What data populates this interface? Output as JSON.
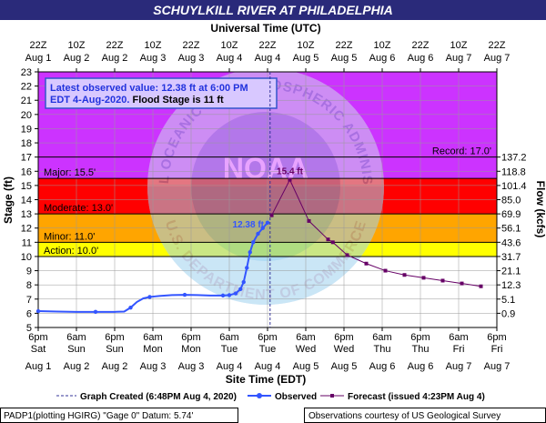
{
  "header": {
    "title": "SCHUYLKILL RIVER AT PHILADELPHIA"
  },
  "top_axis": {
    "title": "Universal Time (UTC)",
    "ticks": [
      {
        "hour": 0,
        "l1": "22Z",
        "l2": "Aug 1"
      },
      {
        "hour": 12,
        "l1": "10Z",
        "l2": "Aug 2"
      },
      {
        "hour": 24,
        "l1": "22Z",
        "l2": "Aug 2"
      },
      {
        "hour": 36,
        "l1": "10Z",
        "l2": "Aug 3"
      },
      {
        "hour": 48,
        "l1": "22Z",
        "l2": "Aug 3"
      },
      {
        "hour": 60,
        "l1": "10Z",
        "l2": "Aug 4"
      },
      {
        "hour": 72,
        "l1": "22Z",
        "l2": "Aug 4"
      },
      {
        "hour": 84,
        "l1": "10Z",
        "l2": "Aug 5"
      },
      {
        "hour": 96,
        "l1": "22Z",
        "l2": "Aug 5"
      },
      {
        "hour": 108,
        "l1": "10Z",
        "l2": "Aug 6"
      },
      {
        "hour": 120,
        "l1": "22Z",
        "l2": "Aug 6"
      },
      {
        "hour": 132,
        "l1": "10Z",
        "l2": "Aug 7"
      },
      {
        "hour": 144,
        "l1": "22Z",
        "l2": "Aug 7"
      }
    ]
  },
  "bottom_axis": {
    "title": "Site Time (EDT)",
    "ticks": [
      {
        "hour": 0,
        "l1": "6pm",
        "l2": "Sat",
        "l3": "Aug 1"
      },
      {
        "hour": 12,
        "l1": "6am",
        "l2": "Sun",
        "l3": "Aug 2"
      },
      {
        "hour": 24,
        "l1": "6pm",
        "l2": "Sun",
        "l3": "Aug 2"
      },
      {
        "hour": 36,
        "l1": "6am",
        "l2": "Mon",
        "l3": "Aug 3"
      },
      {
        "hour": 48,
        "l1": "6pm",
        "l2": "Mon",
        "l3": "Aug 3"
      },
      {
        "hour": 60,
        "l1": "6am",
        "l2": "Tue",
        "l3": "Aug 4"
      },
      {
        "hour": 72,
        "l1": "6pm",
        "l2": "Tue",
        "l3": "Aug 4"
      },
      {
        "hour": 84,
        "l1": "6am",
        "l2": "Wed",
        "l3": "Aug 5"
      },
      {
        "hour": 96,
        "l1": "6pm",
        "l2": "Wed",
        "l3": "Aug 5"
      },
      {
        "hour": 108,
        "l1": "6am",
        "l2": "Thu",
        "l3": "Aug 6"
      },
      {
        "hour": 120,
        "l1": "6pm",
        "l2": "Thu",
        "l3": "Aug 6"
      },
      {
        "hour": 132,
        "l1": "6am",
        "l2": "Fri",
        "l3": "Aug 7"
      },
      {
        "hour": 144,
        "l1": "6pm",
        "l2": "Fri",
        "l3": "Aug 7"
      }
    ]
  },
  "left_axis": {
    "title": "Stage (ft)",
    "min": 5,
    "max": 23,
    "step": 1
  },
  "right_axis": {
    "title": "Flow (kcfs)",
    "ticks": [
      {
        "stage": 6,
        "label": "0.9"
      },
      {
        "stage": 7,
        "label": "5.1"
      },
      {
        "stage": 8,
        "label": "12.3"
      },
      {
        "stage": 9,
        "label": "21.1"
      },
      {
        "stage": 10,
        "label": "31.7"
      },
      {
        "stage": 11,
        "label": "43.6"
      },
      {
        "stage": 12,
        "label": "56.1"
      },
      {
        "stage": 13,
        "label": "69.9"
      },
      {
        "stage": 14,
        "label": "85.0"
      },
      {
        "stage": 15,
        "label": "101.4"
      },
      {
        "stage": 16,
        "label": "118.8"
      },
      {
        "stage": 17,
        "label": "137.2"
      }
    ]
  },
  "bands": [
    {
      "name": "Action",
      "label": "Action: 10.0'",
      "from": 10,
      "to": 11,
      "color": "#ffff00"
    },
    {
      "name": "Minor",
      "label": "Minor: 11.0'",
      "from": 11,
      "to": 13,
      "color": "#ffa500"
    },
    {
      "name": "Moderate",
      "label": "Moderate: 13.0'",
      "from": 13,
      "to": 15.5,
      "color": "#ff0000"
    },
    {
      "name": "Major",
      "label": "Major: 15.5'",
      "from": 15.5,
      "to": 23,
      "color": "#cc33ff"
    }
  ],
  "record": {
    "label": "Record: 17.0'",
    "value": 17
  },
  "info_box": {
    "line1": "Latest observed value: 12.38 ft at 6:00 PM",
    "line2a": "EDT 4-Aug-2020. ",
    "line2b": "Flood Stage is 11 ft"
  },
  "watermark": {
    "top_text": "NATIONAL OCEANIC AND ATMOSPHERIC ADMINISTRATION",
    "bottom_text": "U.S. DEPARTMENT OF COMMERCE",
    "logo_text": "NOAA"
  },
  "legend": {
    "created": "Graph Created (6:48PM Aug 4, 2020)",
    "observed": "Observed",
    "forecast": "Forecast (issued 4:23PM Aug 4)"
  },
  "footer": {
    "left": "PADP1(plotting HGIRG) \"Gage 0\" Datum: 5.74'",
    "right": "Observations courtesy of US Geological Survey"
  },
  "colors": {
    "observed": "#3355ff",
    "forecast": "#660066",
    "created_line": "#333399",
    "title_bg": "#2a2a7a"
  },
  "chart_data": {
    "type": "line",
    "xlabel": "Site Time (EDT)",
    "ylabel": "Stage (ft)",
    "y2label": "Flow (kcfs)",
    "x_units": "hours after 6pm EDT Aug 1, 2020",
    "ylim": [
      5,
      23
    ],
    "xlim": [
      0,
      144
    ],
    "created_hour": 72.8,
    "observed_label": "12.38 ft",
    "forecast_peak_label": "15.4 ft",
    "observed": [
      [
        0,
        6.15
      ],
      [
        6,
        6.12
      ],
      [
        12,
        6.1
      ],
      [
        18,
        6.1
      ],
      [
        24,
        6.1
      ],
      [
        27,
        6.12
      ],
      [
        29,
        6.4
      ],
      [
        31,
        6.8
      ],
      [
        33,
        7.05
      ],
      [
        35,
        7.15
      ],
      [
        38,
        7.22
      ],
      [
        42,
        7.28
      ],
      [
        46,
        7.3
      ],
      [
        50,
        7.28
      ],
      [
        54,
        7.25
      ],
      [
        58,
        7.25
      ],
      [
        60,
        7.28
      ],
      [
        62,
        7.4
      ],
      [
        63.5,
        7.7
      ],
      [
        64.5,
        8.2
      ],
      [
        65.5,
        9.2
      ],
      [
        66.5,
        10.3
      ],
      [
        67.5,
        11.0
      ],
      [
        69,
        11.6
      ],
      [
        70.5,
        12.0
      ],
      [
        72,
        12.38
      ]
    ],
    "forecast": [
      [
        73.3,
        12.9
      ],
      [
        79,
        15.4
      ],
      [
        85,
        12.5
      ],
      [
        91,
        11.2
      ],
      [
        92.5,
        11.0
      ],
      [
        97,
        10.1
      ],
      [
        103,
        9.5
      ],
      [
        109,
        9.0
      ],
      [
        115,
        8.7
      ],
      [
        121,
        8.5
      ],
      [
        127,
        8.3
      ],
      [
        133,
        8.1
      ],
      [
        139,
        7.9
      ]
    ]
  }
}
